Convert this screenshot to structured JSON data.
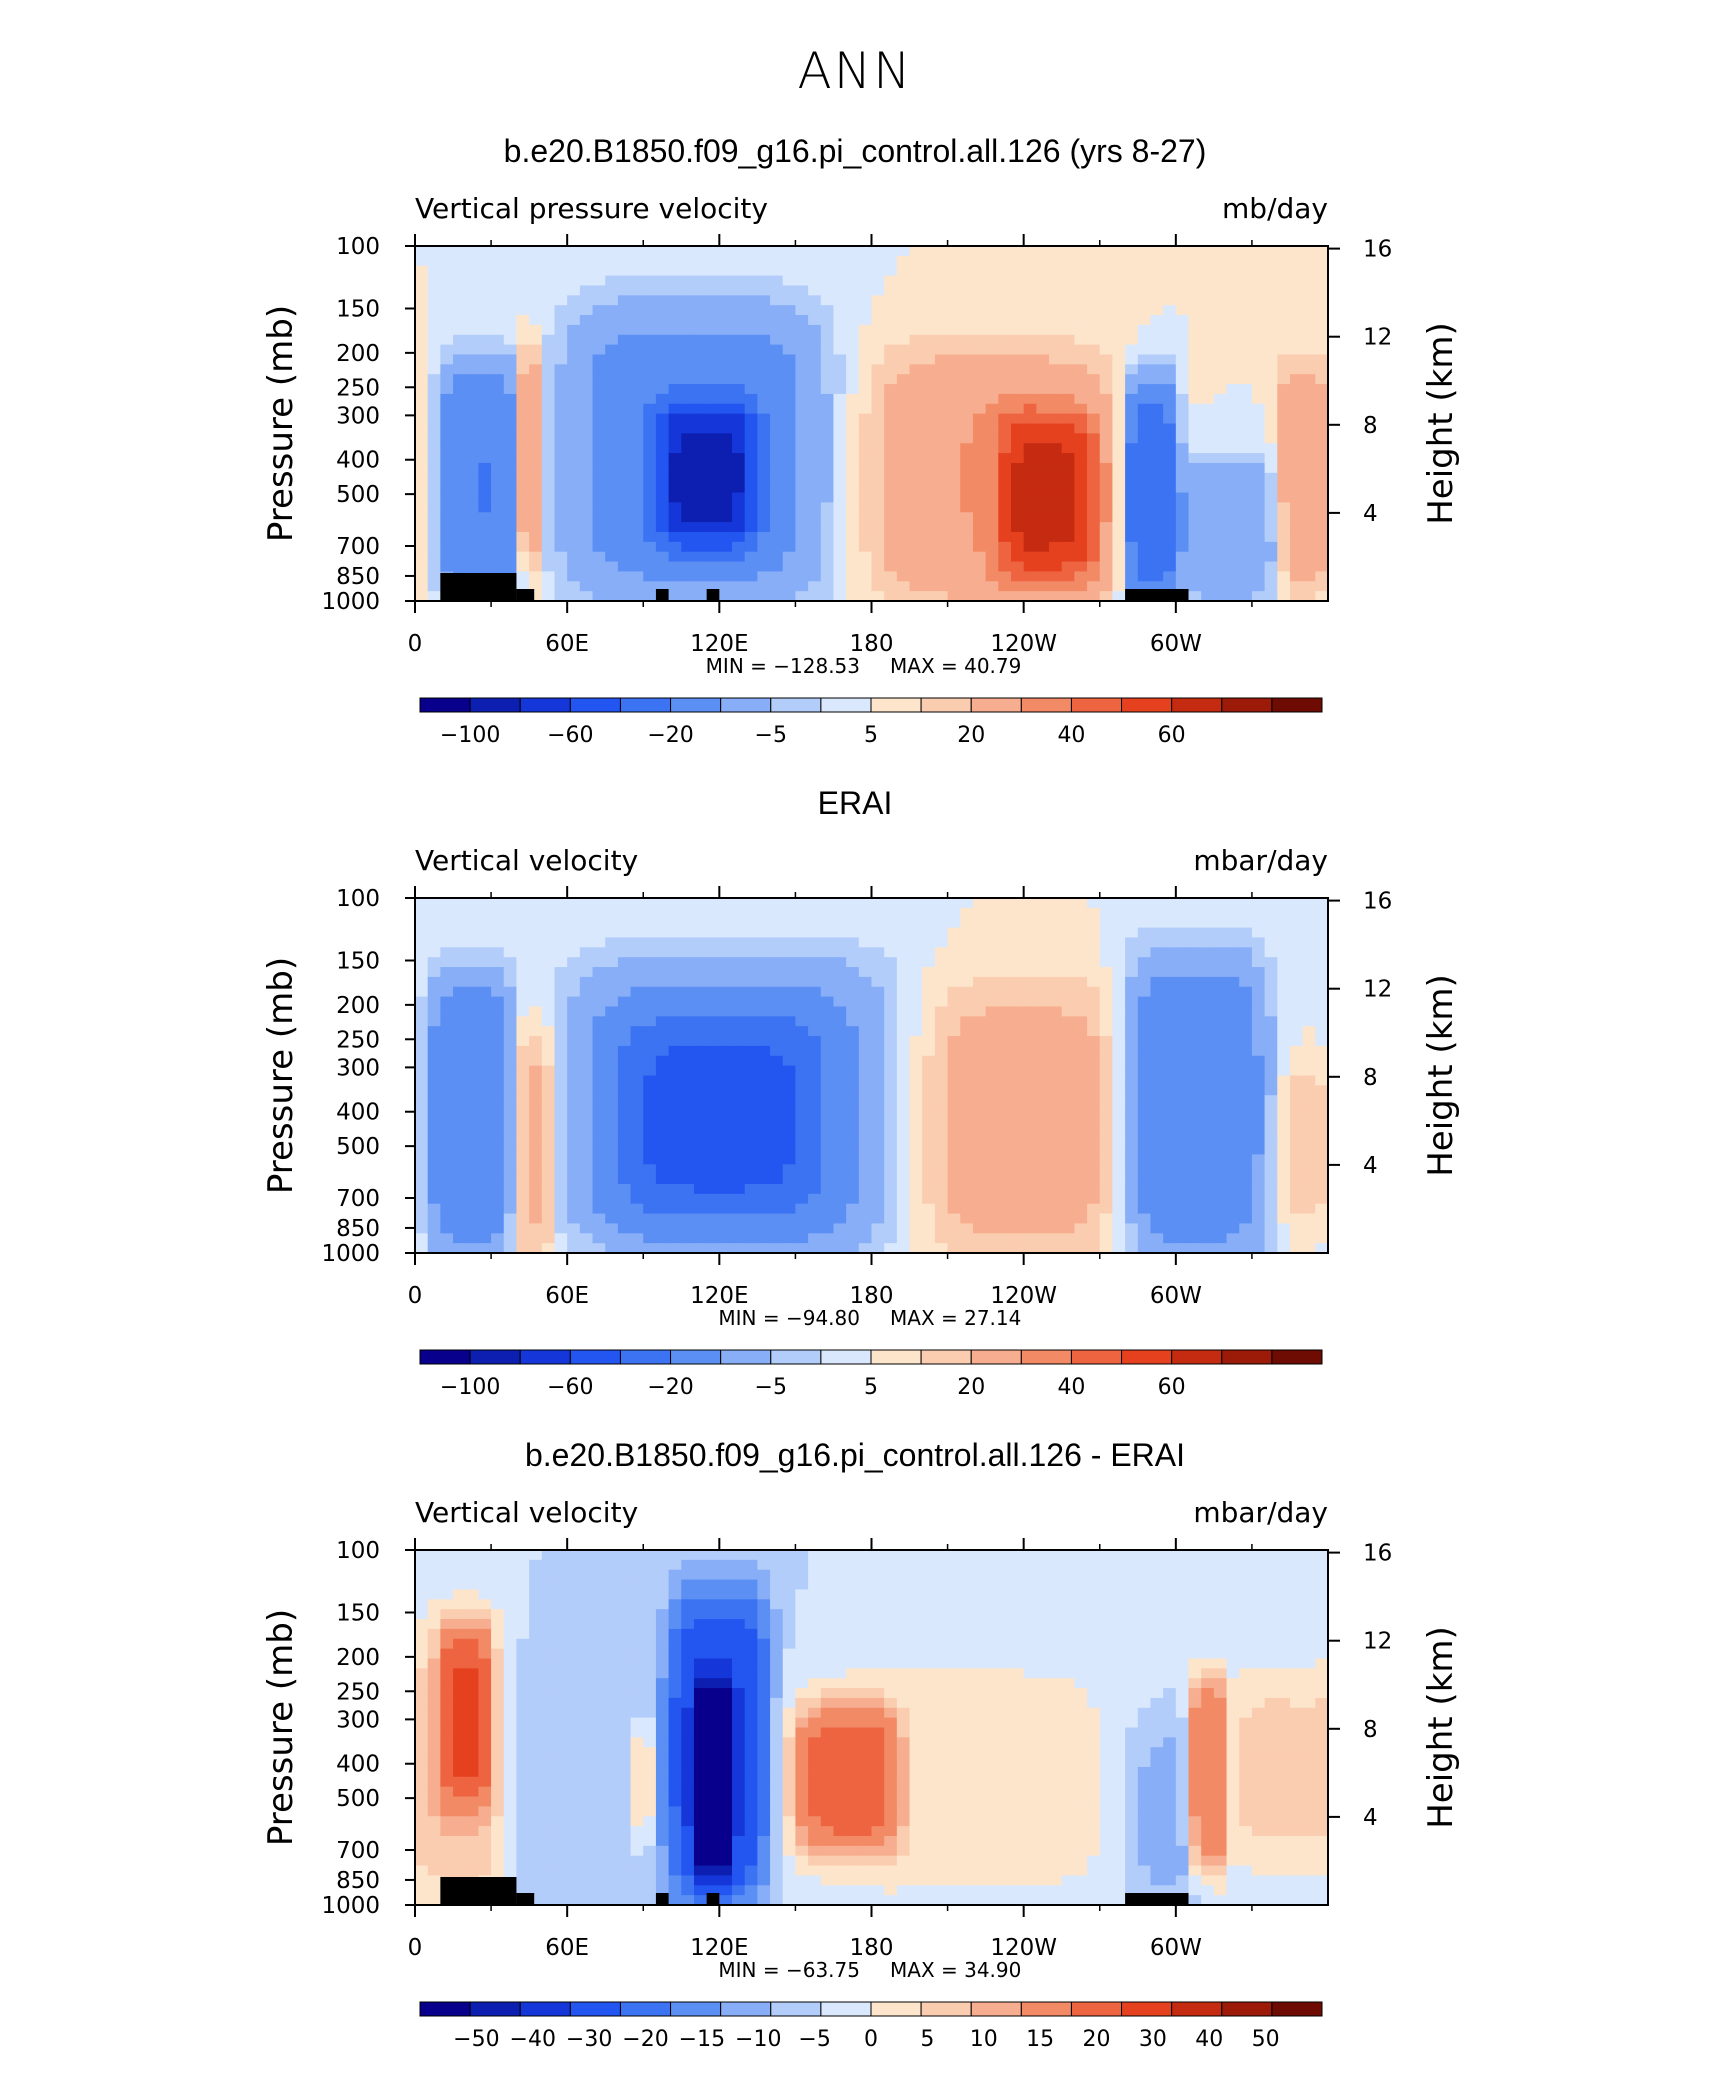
{
  "main_title": "ANN",
  "chart_data": [
    {
      "type": "heatmap",
      "title": "b.e20.B1850.f09_g16.pi_control.all.126 (yrs 8-27)",
      "left_label": "Vertical pressure velocity",
      "right_label": "mb/day",
      "ylabel": "Pressure (mb)",
      "ylabel_right": "Height (km)",
      "x_ticks": [
        "0",
        "60E",
        "120E",
        "180",
        "120W",
        "60W"
      ],
      "y_ticks": [
        "100",
        "150",
        "200",
        "250",
        "300",
        "400",
        "500",
        "700",
        "850",
        "1000"
      ],
      "y_ticks_right": [
        "16",
        "12",
        "8",
        "4"
      ],
      "ylim": [
        1000,
        100
      ],
      "xlim": [
        0,
        360
      ],
      "min_label": "MIN = −128.53",
      "max_label": "MAX = 40.79",
      "min": -128.53,
      "max": 40.79,
      "colorbar_labels": [
        "−100",
        "−60",
        "−20",
        "−5",
        "5",
        "20",
        "40",
        "60"
      ],
      "features": [
        {
          "lon": [
            10,
            40
          ],
          "p": [
            1000,
            220
          ],
          "value": -40
        },
        {
          "lon": [
            40,
            50
          ],
          "p": [
            800,
            200
          ],
          "value": 25
        },
        {
          "lon": [
            60,
            160
          ],
          "p": [
            1000,
            150
          ],
          "value": -30
        },
        {
          "lon": [
            95,
            135
          ],
          "p": [
            700,
            280
          ],
          "value": -80
        },
        {
          "lon": [
            180,
            275
          ],
          "p": [
            1000,
            200
          ],
          "value": 20
        },
        {
          "lon": [
            230,
            270
          ],
          "p": [
            900,
            300
          ],
          "value": 35
        },
        {
          "lon": [
            280,
            300
          ],
          "p": [
            1000,
            250
          ],
          "value": -60
        },
        {
          "lon": [
            300,
            340
          ],
          "p": [
            1000,
            400
          ],
          "value": -20
        },
        {
          "lon": [
            340,
            360
          ],
          "p": [
            900,
            220
          ],
          "value": 20
        }
      ]
    },
    {
      "type": "heatmap",
      "title": "ERAI",
      "left_label": "Vertical velocity",
      "right_label": "mbar/day",
      "ylabel": "Pressure (mb)",
      "ylabel_right": "Height (km)",
      "x_ticks": [
        "0",
        "60E",
        "120E",
        "180",
        "120W",
        "60W"
      ],
      "y_ticks": [
        "100",
        "150",
        "200",
        "250",
        "300",
        "400",
        "500",
        "700",
        "850",
        "1000"
      ],
      "y_ticks_right": [
        "16",
        "12",
        "8",
        "4"
      ],
      "ylim": [
        1000,
        100
      ],
      "xlim": [
        0,
        360
      ],
      "min_label": "MIN = −94.80",
      "max_label": "MAX = 27.14",
      "min": -94.8,
      "max": 27.14,
      "colorbar_labels": [
        "−100",
        "−60",
        "−20",
        "−5",
        "5",
        "20",
        "40",
        "60"
      ],
      "features": [
        {
          "lon": [
            5,
            38
          ],
          "p": [
            1000,
            170
          ],
          "value": -35
        },
        {
          "lon": [
            38,
            55
          ],
          "p": [
            1000,
            230
          ],
          "value": 18
        },
        {
          "lon": [
            60,
            190
          ],
          "p": [
            1000,
            150
          ],
          "value": -25
        },
        {
          "lon": [
            80,
            160
          ],
          "p": [
            800,
            220
          ],
          "value": -45
        },
        {
          "lon": [
            195,
            280
          ],
          "p": [
            1000,
            180
          ],
          "value": 15
        },
        {
          "lon": [
            280,
            335
          ],
          "p": [
            1000,
            150
          ],
          "value": -35
        },
        {
          "lon": [
            340,
            360
          ],
          "p": [
            800,
            300
          ],
          "value": 10
        }
      ]
    },
    {
      "type": "heatmap",
      "title": "b.e20.B1850.f09_g16.pi_control.all.126 - ERAI",
      "left_label": "Vertical velocity",
      "right_label": "mbar/day",
      "ylabel": "Pressure (mb)",
      "ylabel_right": "Height (km)",
      "x_ticks": [
        "0",
        "60E",
        "120E",
        "180",
        "120W",
        "60W"
      ],
      "y_ticks": [
        "100",
        "150",
        "200",
        "250",
        "300",
        "400",
        "500",
        "700",
        "850",
        "1000"
      ],
      "y_ticks_right": [
        "16",
        "12",
        "8",
        "4"
      ],
      "ylim": [
        1000,
        100
      ],
      "xlim": [
        0,
        360
      ],
      "min_label": "MIN = −63.75",
      "max_label": "MAX = 34.90",
      "min": -63.75,
      "max": 34.9,
      "colorbar_labels": [
        "−50",
        "−40",
        "−30",
        "−20",
        "−15",
        "−10",
        "−5",
        "0",
        "5",
        "10",
        "15",
        "20",
        "30",
        "40",
        "50"
      ],
      "features": [
        {
          "lon": [
            0,
            35
          ],
          "p": [
            1000,
            150
          ],
          "value": 15
        },
        {
          "lon": [
            10,
            30
          ],
          "p": [
            500,
            170
          ],
          "value": 30
        },
        {
          "lon": [
            45,
            100
          ],
          "p": [
            1000,
            200
          ],
          "value": -5
        },
        {
          "lon": [
            85,
            95
          ],
          "p": [
            700,
            300
          ],
          "value": 12
        },
        {
          "lon": [
            100,
            140
          ],
          "p": [
            1000,
            130
          ],
          "value": -30
        },
        {
          "lon": [
            110,
            125
          ],
          "p": [
            800,
            250
          ],
          "value": -55
        },
        {
          "lon": [
            145,
            280
          ],
          "p": [
            1000,
            200
          ],
          "value": 8
        },
        {
          "lon": [
            150,
            190
          ],
          "p": [
            700,
            280
          ],
          "value": 30
        },
        {
          "lon": [
            280,
            310
          ],
          "p": [
            1000,
            300
          ],
          "value": -8
        },
        {
          "lon": [
            305,
            320
          ],
          "p": [
            800,
            230
          ],
          "value": 30
        },
        {
          "lon": [
            320,
            360
          ],
          "p": [
            800,
            220
          ],
          "value": 12
        }
      ]
    }
  ]
}
